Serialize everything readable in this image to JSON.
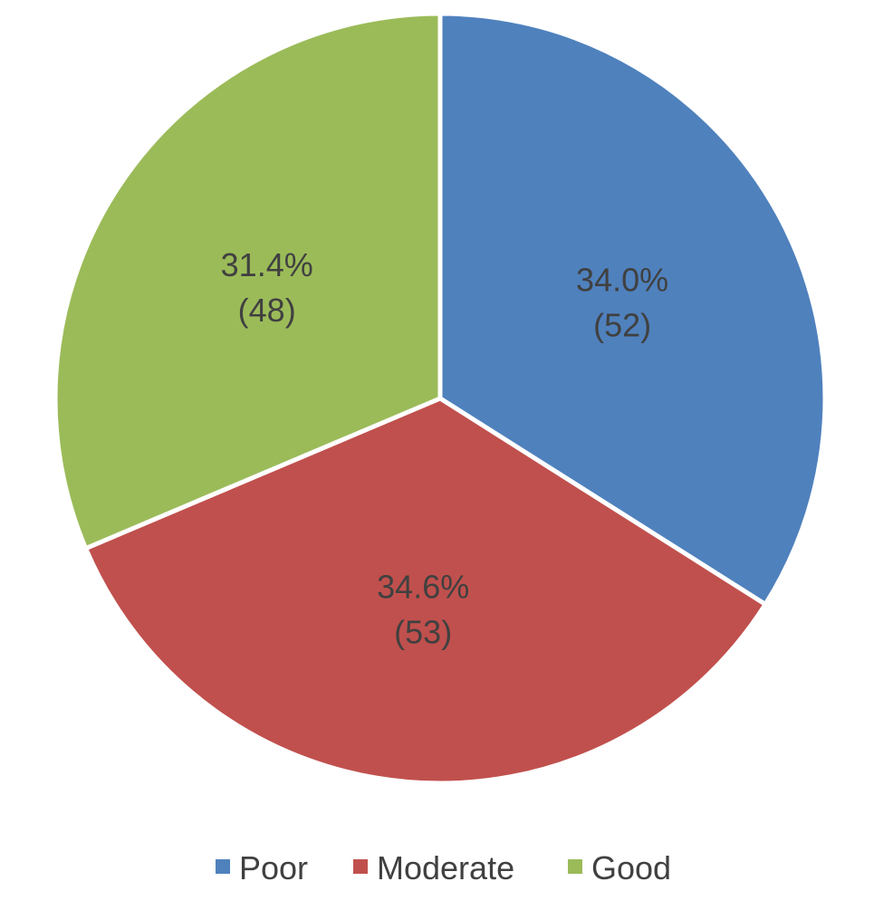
{
  "chart_data": {
    "type": "pie",
    "categories": [
      "Poor",
      "Moderate",
      "Good"
    ],
    "values": [
      52,
      53,
      48
    ],
    "percent_labels": [
      "34.0%",
      "34.6%",
      "31.4%"
    ],
    "count_labels": [
      "(52)",
      "(53)",
      "(48)"
    ],
    "colors": [
      "#4F81BD",
      "#C0504D",
      "#9BBB59"
    ],
    "start_angle_deg": 0,
    "direction": "clockwise",
    "legend_position": "bottom",
    "title": ""
  }
}
